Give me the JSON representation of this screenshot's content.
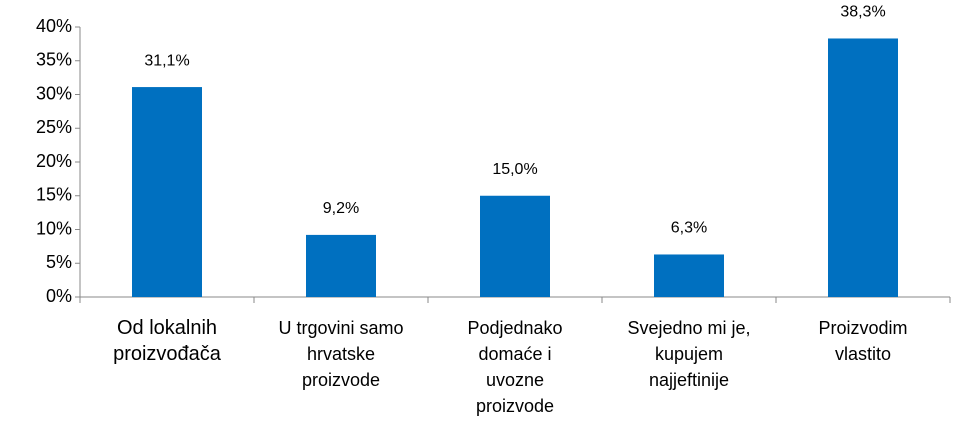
{
  "chart_data": {
    "type": "bar",
    "categories": [
      "Od lokalnih\nproizvođača",
      "U trgovini samo\nhrvatske\nproizvode",
      "Podjednako\ndomaće i\nuvozne\nproizvode",
      "Svejedno mi je,\nkupujem\nnajjeftinije",
      "Proizvodim\nvlastito"
    ],
    "values": [
      31.1,
      9.2,
      15.0,
      6.3,
      38.3
    ],
    "value_labels": [
      "31,1%",
      "9,2%",
      "15,0%",
      "6,3%",
      "38,3%"
    ],
    "color": "#0070c0",
    "ylim": [
      0,
      40
    ],
    "yticks": [
      {
        "value": 0,
        "label": "0%"
      },
      {
        "value": 5,
        "label": "5%"
      },
      {
        "value": 10,
        "label": "10%"
      },
      {
        "value": 15,
        "label": "15%"
      },
      {
        "value": 20,
        "label": "20%"
      },
      {
        "value": 25,
        "label": "25%"
      },
      {
        "value": 30,
        "label": "30%"
      },
      {
        "value": 35,
        "label": "35%"
      },
      {
        "value": 40,
        "label": "40%"
      }
    ],
    "grid": false
  }
}
